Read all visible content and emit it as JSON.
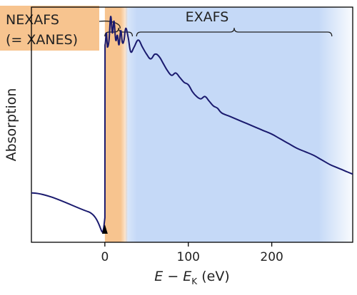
{
  "chart_data": {
    "type": "line",
    "xlabel": {
      "main": "E",
      "minus": " − ",
      "sub_e": "E",
      "subscript": "K",
      "unit": " (eV)"
    },
    "ylabel": "Absorption",
    "xlim": [
      -88,
      297
    ],
    "ylim": [
      0,
      1
    ],
    "x_ticks": [
      0,
      100,
      200
    ],
    "x_tick_labels": [
      "0",
      "100",
      "200"
    ],
    "grid": false,
    "regions": [
      {
        "name": "NEXAFS",
        "label_line1": "NEXAFS",
        "label_line2": "(= XANES)",
        "x_start": 0,
        "x_end": 27,
        "color": "#f7c48f"
      },
      {
        "name": "EXAFS",
        "label": "EXAFS",
        "x_start": 30,
        "x_end": 297,
        "color": "#c5d9f7"
      }
    ],
    "brace_nexafs": [
      0,
      33
    ],
    "brace_exafs": [
      38,
      272
    ],
    "edge_marker_x": 0,
    "line_color": "#1a1a6e",
    "series": [
      {
        "x": [
          -88,
          -20,
          0,
          0.2,
          2,
          3,
          5,
          7,
          9,
          11,
          13,
          15,
          17,
          19,
          21,
          23,
          25,
          28,
          31,
          35,
          40,
          45,
          50,
          55,
          60,
          65,
          70,
          75,
          80,
          85,
          90,
          95,
          100,
          105,
          110,
          115,
          120,
          125,
          130,
          135,
          140,
          150,
          160,
          170,
          180,
          190,
          200,
          210,
          220,
          230,
          240,
          250,
          260,
          270,
          280,
          290,
          297
        ],
        "y": [
          0.21,
          0.13,
          0.105,
          0.84,
          0.89,
          0.83,
          0.86,
          0.96,
          0.89,
          0.94,
          0.86,
          0.88,
          0.84,
          0.9,
          0.85,
          0.86,
          0.91,
          0.87,
          0.81,
          0.83,
          0.86,
          0.83,
          0.8,
          0.78,
          0.8,
          0.79,
          0.76,
          0.73,
          0.71,
          0.72,
          0.7,
          0.68,
          0.67,
          0.64,
          0.62,
          0.61,
          0.62,
          0.6,
          0.58,
          0.57,
          0.55,
          0.535,
          0.52,
          0.505,
          0.49,
          0.475,
          0.46,
          0.44,
          0.42,
          0.4,
          0.385,
          0.37,
          0.35,
          0.33,
          0.315,
          0.3,
          0.29
        ]
      }
    ]
  }
}
